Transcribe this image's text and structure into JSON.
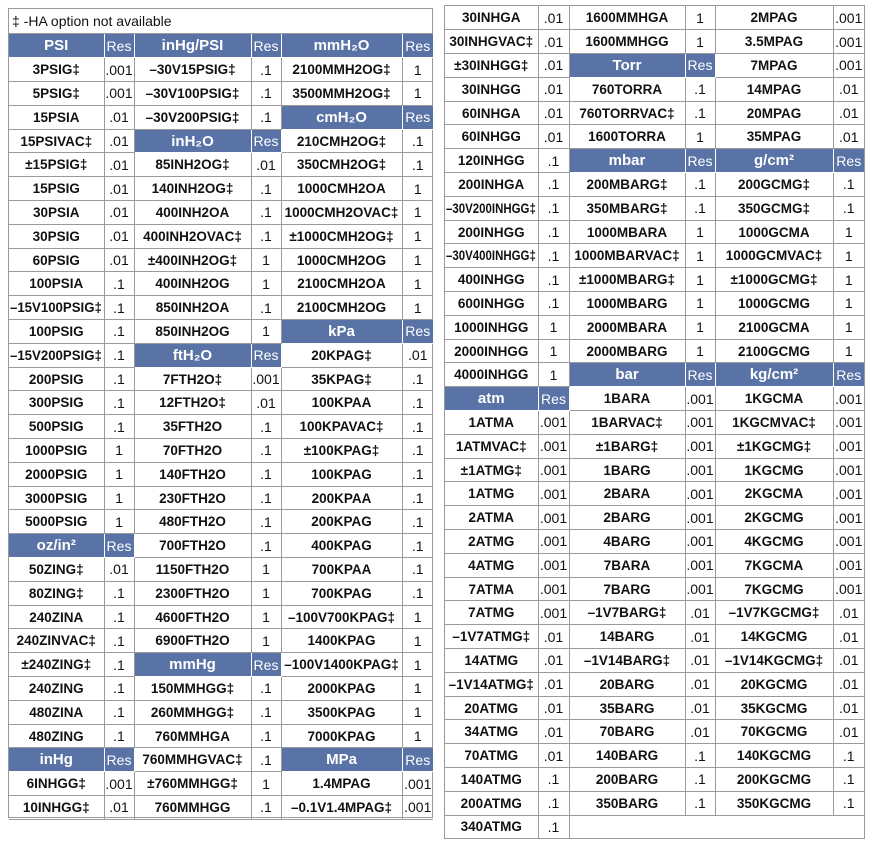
{
  "footnote": "‡ -HA option not available",
  "colors": {
    "header_bg": "#5a73a6",
    "header_text": "#ffffff",
    "border": "#9a9a9a"
  },
  "left_table": {
    "columns": [
      [
        {
          "header": "PSI",
          "res": "Res"
        },
        {
          "name": "3PSIG‡",
          "res": ".001"
        },
        {
          "name": "5PSIG‡",
          "res": ".001"
        },
        {
          "name": "15PSIA",
          "res": ".01"
        },
        {
          "name": "15PSIVAC‡",
          "res": ".01"
        },
        {
          "name": "±15PSIG‡",
          "res": ".01"
        },
        {
          "name": "15PSIG",
          "res": ".01"
        },
        {
          "name": "30PSIA",
          "res": ".01"
        },
        {
          "name": "30PSIG",
          "res": ".01"
        },
        {
          "name": "60PSIG",
          "res": ".01"
        },
        {
          "name": "100PSIA",
          "res": ".1"
        },
        {
          "name": "–15V100PSIG‡",
          "res": ".1"
        },
        {
          "name": "100PSIG",
          "res": ".1"
        },
        {
          "name": "–15V200PSIG‡",
          "res": ".1"
        },
        {
          "name": "200PSIG",
          "res": ".1"
        },
        {
          "name": "300PSIG",
          "res": ".1"
        },
        {
          "name": "500PSIG",
          "res": ".1"
        },
        {
          "name": "1000PSIG",
          "res": "1"
        },
        {
          "name": "2000PSIG",
          "res": "1"
        },
        {
          "name": "3000PSIG",
          "res": "1"
        },
        {
          "name": "5000PSIG",
          "res": "1"
        },
        {
          "header": "oz/in²",
          "res": "Res"
        },
        {
          "name": "50ZING‡",
          "res": ".01"
        },
        {
          "name": "80ZING‡",
          "res": ".1"
        },
        {
          "name": "240ZINA",
          "res": ".1"
        },
        {
          "name": "240ZINVAC‡",
          "res": ".1"
        },
        {
          "name": "±240ZING‡",
          "res": ".1"
        },
        {
          "name": "240ZING",
          "res": ".1"
        },
        {
          "name": "480ZINA",
          "res": ".1"
        },
        {
          "name": "480ZING",
          "res": ".1"
        },
        {
          "header": "inHg",
          "res": "Res"
        },
        {
          "name": "6INHGG‡",
          "res": ".001"
        },
        {
          "name": "10INHGG‡",
          "res": ".01"
        }
      ],
      [
        {
          "header": "inHg/PSI",
          "res": "Res"
        },
        {
          "name": "–30V15PSIG‡",
          "res": ".1"
        },
        {
          "name": "–30V100PSIG‡",
          "res": ".1"
        },
        {
          "name": "–30V200PSIG‡",
          "res": ".1"
        },
        {
          "header": "inH₂O",
          "res": "Res"
        },
        {
          "name": "85INH2OG‡",
          "res": ".01"
        },
        {
          "name": "140INH2OG‡",
          "res": ".1"
        },
        {
          "name": "400INH2OA",
          "res": ".1"
        },
        {
          "name": "400INH2OVAC‡",
          "res": ".1"
        },
        {
          "name": "±400INH2OG‡",
          "res": "1"
        },
        {
          "name": "400INH2OG",
          "res": "1"
        },
        {
          "name": "850INH2OA",
          "res": ".1"
        },
        {
          "name": "850INH2OG",
          "res": "1"
        },
        {
          "header": "ftH₂O",
          "res": "Res"
        },
        {
          "name": "7FTH2O‡",
          "res": ".001"
        },
        {
          "name": "12FTH2O‡",
          "res": ".01"
        },
        {
          "name": "35FTH2O",
          "res": ".1"
        },
        {
          "name": "70FTH2O",
          "res": ".1"
        },
        {
          "name": "140FTH2O",
          "res": ".1"
        },
        {
          "name": "230FTH2O",
          "res": ".1"
        },
        {
          "name": "480FTH2O",
          "res": ".1"
        },
        {
          "name": "700FTH2O",
          "res": ".1"
        },
        {
          "name": "1150FTH2O",
          "res": "1"
        },
        {
          "name": "2300FTH2O",
          "res": "1"
        },
        {
          "name": "4600FTH2O",
          "res": "1"
        },
        {
          "name": "6900FTH2O",
          "res": "1"
        },
        {
          "header": "mmHg",
          "res": "Res"
        },
        {
          "name": "150MMHGG‡",
          "res": ".1"
        },
        {
          "name": "260MMHGG‡",
          "res": ".1"
        },
        {
          "name": "760MMHGA",
          "res": ".1"
        },
        {
          "name": "760MMHGVAC‡",
          "res": ".1"
        },
        {
          "name": "±760MMHGG‡",
          "res": "1"
        },
        {
          "name": "760MMHGG",
          "res": ".1"
        }
      ],
      [
        {
          "header": "mmH₂O",
          "res": "Res"
        },
        {
          "name": "2100MMH2OG‡",
          "res": "1"
        },
        {
          "name": "3500MMH2OG‡",
          "res": "1"
        },
        {
          "header": "cmH₂O",
          "res": "Res"
        },
        {
          "name": "210CMH2OG‡",
          "res": ".1"
        },
        {
          "name": "350CMH2OG‡",
          "res": ".1"
        },
        {
          "name": "1000CMH2OA",
          "res": "1"
        },
        {
          "name": "1000CMH2OVAC‡",
          "res": "1"
        },
        {
          "name": "±1000CMH2OG‡",
          "res": "1"
        },
        {
          "name": "1000CMH2OG",
          "res": "1"
        },
        {
          "name": "2100CMH2OA",
          "res": "1"
        },
        {
          "name": "2100CMH2OG",
          "res": "1"
        },
        {
          "header": "kPa",
          "res": "Res"
        },
        {
          "name": "20KPAG‡",
          "res": ".01"
        },
        {
          "name": "35KPAG‡",
          "res": ".1"
        },
        {
          "name": "100KPAA",
          "res": ".1"
        },
        {
          "name": "100KPAVAC‡",
          "res": ".1"
        },
        {
          "name": "±100KPAG‡",
          "res": ".1"
        },
        {
          "name": "100KPAG",
          "res": ".1"
        },
        {
          "name": "200KPAA",
          "res": ".1"
        },
        {
          "name": "200KPAG",
          "res": ".1"
        },
        {
          "name": "400KPAG",
          "res": ".1"
        },
        {
          "name": "700KPAA",
          "res": ".1"
        },
        {
          "name": "700KPAG",
          "res": ".1"
        },
        {
          "name": "–100V700KPAG‡",
          "res": "1"
        },
        {
          "name": "1400KPAG",
          "res": "1"
        },
        {
          "name": "–100V1400KPAG‡",
          "res": "1"
        },
        {
          "name": "2000KPAG",
          "res": "1"
        },
        {
          "name": "3500KPAG",
          "res": "1"
        },
        {
          "name": "7000KPAG",
          "res": "1"
        },
        {
          "header": "MPa",
          "res": "Res"
        },
        {
          "name": "1.4MPAG",
          "res": ".001"
        },
        {
          "name": "–0.1V1.4MPAG‡",
          "res": ".001"
        }
      ]
    ]
  },
  "right_table": {
    "columns": [
      [
        {
          "name": "30INHGA",
          "res": ".01"
        },
        {
          "name": "30INHGVAC‡",
          "res": ".01"
        },
        {
          "name": "±30INHGG‡",
          "res": ".01"
        },
        {
          "name": "30INHGG",
          "res": ".01"
        },
        {
          "name": "60INHGA",
          "res": ".01"
        },
        {
          "name": "60INHGG",
          "res": ".01"
        },
        {
          "name": "120INHGG",
          "res": ".1"
        },
        {
          "name": "200INHGA",
          "res": ".1"
        },
        {
          "name": "–30V200INHGG‡",
          "res": ".1"
        },
        {
          "name": "200INHGG",
          "res": ".1"
        },
        {
          "name": "–30V400INHGG‡",
          "res": ".1"
        },
        {
          "name": "400INHGG",
          "res": ".1"
        },
        {
          "name": "600INHGG",
          "res": ".1"
        },
        {
          "name": "1000INHGG",
          "res": "1"
        },
        {
          "name": "2000INHGG",
          "res": "1"
        },
        {
          "name": "4000INHGG",
          "res": "1"
        },
        {
          "header": "atm",
          "res": "Res"
        },
        {
          "name": "1ATMA",
          "res": ".001"
        },
        {
          "name": "1ATMVAC‡",
          "res": ".001"
        },
        {
          "name": "±1ATMG‡",
          "res": ".001"
        },
        {
          "name": "1ATMG",
          "res": ".001"
        },
        {
          "name": "2ATMA",
          "res": ".001"
        },
        {
          "name": "2ATMG",
          "res": ".001"
        },
        {
          "name": "4ATMG",
          "res": ".001"
        },
        {
          "name": "7ATMA",
          "res": ".001"
        },
        {
          "name": "7ATMG",
          "res": ".001"
        },
        {
          "name": "–1V7ATMG‡",
          "res": ".01"
        },
        {
          "name": "14ATMG",
          "res": ".01"
        },
        {
          "name": "–1V14ATMG‡",
          "res": ".01"
        },
        {
          "name": "20ATMG",
          "res": ".01"
        },
        {
          "name": "34ATMG",
          "res": ".01"
        },
        {
          "name": "70ATMG",
          "res": ".01"
        },
        {
          "name": "140ATMG",
          "res": ".1"
        },
        {
          "name": "200ATMG",
          "res": ".1"
        },
        {
          "name": "340ATMG",
          "res": ".1"
        }
      ],
      [
        {
          "name": "1600MMHGA",
          "res": "1"
        },
        {
          "name": "1600MMHGG",
          "res": "1"
        },
        {
          "header": "Torr",
          "res": "Res"
        },
        {
          "name": "760TORRA",
          "res": ".1"
        },
        {
          "name": "760TORRVAC‡",
          "res": ".1"
        },
        {
          "name": "1600TORRA",
          "res": "1"
        },
        {
          "header": "mbar",
          "res": "Res"
        },
        {
          "name": "200MBARG‡",
          "res": ".1"
        },
        {
          "name": "350MBARG‡",
          "res": ".1"
        },
        {
          "name": "1000MBARA",
          "res": "1"
        },
        {
          "name": "1000MBARVAC‡",
          "res": "1"
        },
        {
          "name": "±1000MBARG‡",
          "res": "1"
        },
        {
          "name": "1000MBARG",
          "res": "1"
        },
        {
          "name": "2000MBARA",
          "res": "1"
        },
        {
          "name": "2000MBARG",
          "res": "1"
        },
        {
          "header": "bar",
          "res": "Res"
        },
        {
          "name": "1BARA",
          "res": ".001"
        },
        {
          "name": "1BARVAC‡",
          "res": ".001"
        },
        {
          "name": "±1BARG‡",
          "res": ".001"
        },
        {
          "name": "1BARG",
          "res": ".001"
        },
        {
          "name": "2BARA",
          "res": ".001"
        },
        {
          "name": "2BARG",
          "res": ".001"
        },
        {
          "name": "4BARG",
          "res": ".001"
        },
        {
          "name": "7BARA",
          "res": ".001"
        },
        {
          "name": "7BARG",
          "res": ".001"
        },
        {
          "name": "–1V7BARG‡",
          "res": ".01"
        },
        {
          "name": "14BARG",
          "res": ".01"
        },
        {
          "name": "–1V14BARG‡",
          "res": ".01"
        },
        {
          "name": "20BARG",
          "res": ".01"
        },
        {
          "name": "35BARG",
          "res": ".01"
        },
        {
          "name": "70BARG",
          "res": ".01"
        },
        {
          "name": "140BARG",
          "res": ".1"
        },
        {
          "name": "200BARG",
          "res": ".1"
        },
        {
          "name": "350BARG",
          "res": ".1"
        }
      ],
      [
        {
          "name": "2MPAG",
          "res": ".001"
        },
        {
          "name": "3.5MPAG",
          "res": ".001"
        },
        {
          "name": "7MPAG",
          "res": ".001"
        },
        {
          "name": "14MPAG",
          "res": ".01"
        },
        {
          "name": "20MPAG",
          "res": ".01"
        },
        {
          "name": "35MPAG",
          "res": ".01"
        },
        {
          "header": "g/cm²",
          "res": "Res"
        },
        {
          "name": "200GCMG‡",
          "res": ".1"
        },
        {
          "name": "350GCMG‡",
          "res": ".1"
        },
        {
          "name": "1000GCMA",
          "res": "1"
        },
        {
          "name": "1000GCMVAC‡",
          "res": "1"
        },
        {
          "name": "±1000GCMG‡",
          "res": "1"
        },
        {
          "name": "1000GCMG",
          "res": "1"
        },
        {
          "name": "2100GCMA",
          "res": "1"
        },
        {
          "name": "2100GCMG",
          "res": "1"
        },
        {
          "header": "kg/cm²",
          "res": "Res"
        },
        {
          "name": "1KGCMA",
          "res": ".001"
        },
        {
          "name": "1KGCMVAC‡",
          "res": ".001"
        },
        {
          "name": "±1KGCMG‡",
          "res": ".001"
        },
        {
          "name": "1KGCMG",
          "res": ".001"
        },
        {
          "name": "2KGCMA",
          "res": ".001"
        },
        {
          "name": "2KGCMG",
          "res": ".001"
        },
        {
          "name": "4KGCMG",
          "res": ".001"
        },
        {
          "name": "7KGCMA",
          "res": ".001"
        },
        {
          "name": "7KGCMG",
          "res": ".001"
        },
        {
          "name": "–1V7KGCMG‡",
          "res": ".01"
        },
        {
          "name": "14KGCMG",
          "res": ".01"
        },
        {
          "name": "–1V14KGCMG‡",
          "res": ".01"
        },
        {
          "name": "20KGCMG",
          "res": ".01"
        },
        {
          "name": "35KGCMG",
          "res": ".01"
        },
        {
          "name": "70KGCMG",
          "res": ".01"
        },
        {
          "name": "140KGCMG",
          "res": ".1"
        },
        {
          "name": "200KGCMG",
          "res": ".1"
        },
        {
          "name": "350KGCMG",
          "res": ".1"
        }
      ]
    ]
  }
}
